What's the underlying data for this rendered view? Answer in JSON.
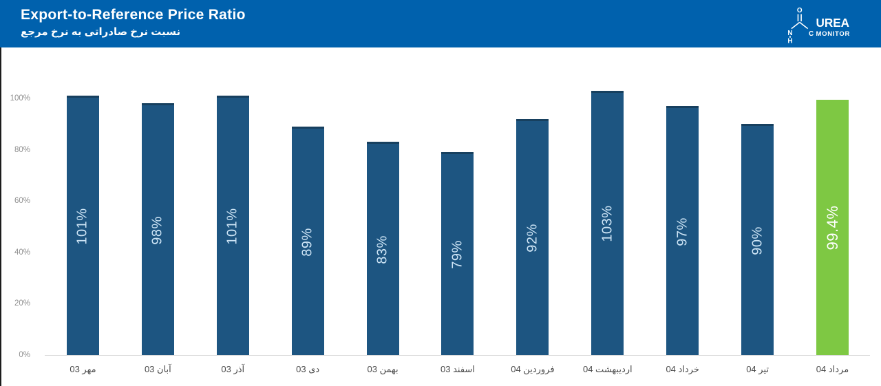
{
  "header": {
    "title": "Export-to-Reference Price Ratio",
    "subtitle_fa": "نسبت نرخ صادراتی به نرخ مرجع",
    "background_color": "#0061ad",
    "logo": {
      "brand_top": "UREA",
      "brand_bottom": "MONITOR",
      "atom_o": "O",
      "atom_n": "N",
      "atom_h": "H",
      "atom_c": "C"
    }
  },
  "chart_data": {
    "type": "bar",
    "title": "Export-to-Reference Price Ratio",
    "title_fa": "نسبت نرخ صادراتی به نرخ مرجع",
    "categories": [
      "مهر 03",
      "آبان 03",
      "آذر 03",
      "دی 03",
      "بهمن 03",
      "اسفند 03",
      "فروردین 04",
      "اردیبهشت 04",
      "خرداد 04",
      "تیر 04",
      "مرداد 04"
    ],
    "values": [
      101,
      98,
      101,
      89,
      83,
      79,
      92,
      103,
      97,
      90,
      99.4
    ],
    "labels": [
      "101%",
      "98%",
      "101%",
      "89%",
      "83%",
      "79%",
      "92%",
      "103%",
      "97%",
      "90%",
      "99.4%"
    ],
    "y_ticks": [
      "100%",
      "80%",
      "60%",
      "40%",
      "20%",
      "0%"
    ],
    "ylim": [
      0,
      103
    ],
    "grid": false,
    "legend_position": "none",
    "bar_color": "#1d5581",
    "bar_edge_color": "#17405f",
    "highlight_index": 10,
    "highlight_color": "#7ec843",
    "label_color": "#cde4f5",
    "highlight_label_color": "#ffffff",
    "axis_line_color": "#d9d9d9"
  }
}
